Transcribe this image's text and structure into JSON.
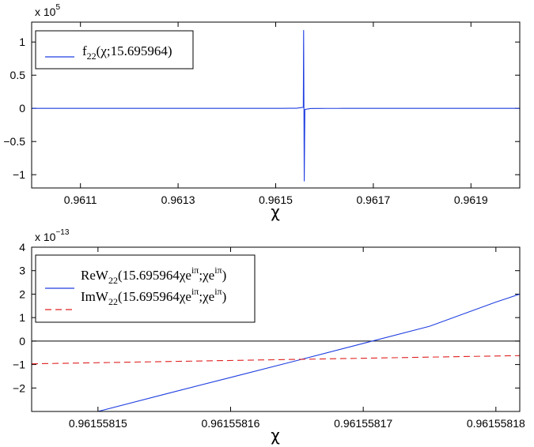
{
  "chart_data": [
    {
      "type": "line",
      "xlabel": "χ",
      "scale_text": "x 10",
      "scale_exp": "5",
      "xlim": [
        0.961,
        0.962
      ],
      "ylim": [
        -1.2,
        1.3
      ],
      "x_ticks": [
        0.9611,
        0.9613,
        0.9615,
        0.9617,
        0.9619
      ],
      "x_tick_labels": [
        "0.9611",
        "0.9613",
        "0.9615",
        "0.9617",
        "0.9619"
      ],
      "y_ticks": [
        -1,
        -0.5,
        0,
        0.5,
        1
      ],
      "y_tick_labels": [
        "−1",
        "−0.5",
        "0",
        "0.5",
        "1"
      ],
      "pole_x": 0.96155816,
      "pole_y_max": 1.18,
      "pole_y_min": -1.1,
      "series": [
        {
          "name": "f22(χ;15.695964)",
          "legend": {
            "pre": "f",
            "sub": "22",
            "post": "(χ;15.695964)"
          },
          "color": "#1f3fe0",
          "style": "solid"
        }
      ]
    },
    {
      "type": "line",
      "xlabel": "χ",
      "scale_text": "x 10",
      "scale_exp": "−13",
      "xlim": [
        0.961558145,
        0.9615581818
      ],
      "ylim": [
        -3,
        4
      ],
      "x_ticks": [
        0.96155815,
        0.96155816,
        0.96155817,
        0.96155818
      ],
      "x_tick_labels": [
        "0.96155815",
        "0.96155816",
        "0.96155817",
        "0.96155818"
      ],
      "y_ticks": [
        -2,
        -1,
        0,
        1,
        2,
        3,
        4
      ],
      "y_tick_labels": [
        "−2",
        "−1",
        "0",
        "1",
        "2",
        "3",
        "4"
      ],
      "series": [
        {
          "name": "ReW22(15.695964χeiπ;χeiπ)",
          "legend": {
            "pre": "ReW",
            "sub": "22",
            "mid": "(15.695964χe",
            "sup1": "iπ",
            "mid2": ";χe",
            "sup2": "iπ",
            "post": ")"
          },
          "color": "#1f3fe0",
          "style": "solid",
          "x": [
            0.961558145,
            0.96155815,
            0.961558155,
            0.96155816,
            0.961558165,
            0.96155817,
            0.961558175,
            0.96155818,
            0.9615581818
          ],
          "values": [
            -3.7,
            -3.0,
            -2.27,
            -1.55,
            -0.83,
            -0.1,
            0.63,
            1.66,
            2.0
          ]
        },
        {
          "name": "ImW22(15.695964χeiπ;χeiπ)",
          "legend": {
            "pre": "ImW",
            "sub": "22",
            "mid": "(15.695964χe",
            "sup1": "iπ",
            "mid2": ";χe",
            "sup2": "iπ",
            "post": ")"
          },
          "color": "#e02020",
          "style": "dashed",
          "x": [
            0.961558145,
            0.9615581818
          ],
          "values": [
            -0.97,
            -0.62
          ]
        }
      ]
    }
  ]
}
